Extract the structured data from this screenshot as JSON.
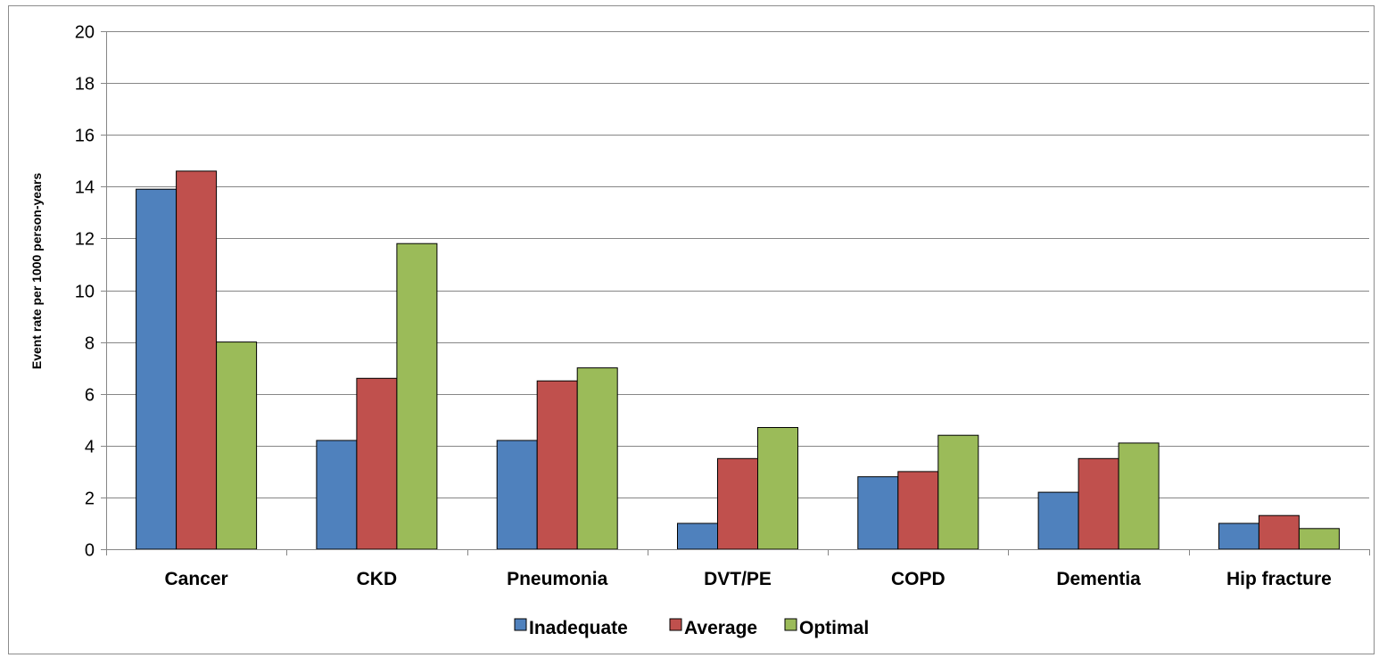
{
  "chart_data": {
    "type": "bar",
    "title": "",
    "xlabel": "",
    "ylabel": "Event rate per 1000 person-years",
    "ylim": [
      0,
      20
    ],
    "yticks": [
      0,
      2,
      4,
      6,
      8,
      10,
      12,
      14,
      16,
      18,
      20
    ],
    "grid": true,
    "legend_position": "bottom",
    "categories": [
      "Cancer",
      "CKD",
      "Pneumonia",
      "DVT/PE",
      "COPD",
      "Dementia",
      "Hip fracture"
    ],
    "series": [
      {
        "name": "Inadequate",
        "color": "#4F81BD",
        "values": [
          13.9,
          4.2,
          4.2,
          1.0,
          2.8,
          2.2,
          1.0
        ]
      },
      {
        "name": "Average",
        "color": "#C0504D",
        "values": [
          14.6,
          6.6,
          6.5,
          3.5,
          3.0,
          3.5,
          1.3
        ]
      },
      {
        "name": "Optimal",
        "color": "#9BBB59",
        "values": [
          8.0,
          11.8,
          7.0,
          4.7,
          4.4,
          4.1,
          0.8
        ]
      }
    ]
  }
}
